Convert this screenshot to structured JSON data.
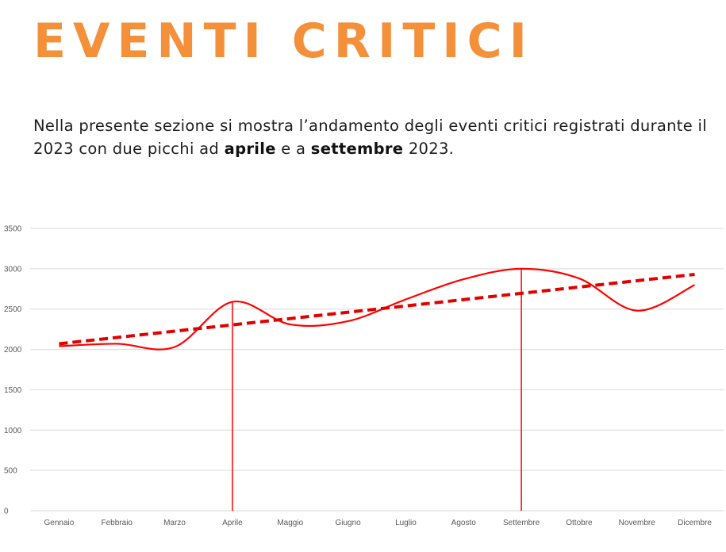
{
  "title": "EVENTI CRITICI",
  "description": {
    "part1": "Nella presente sezione si mostra l’andamento degli eventi critici registrati durante il 2023 con due picchi ad ",
    "bold1": "aprile",
    "part2": " e a ",
    "bold2": "settembre",
    "part3": " 2023."
  },
  "colors": {
    "title": "#f4903a",
    "series": "#ff0000",
    "trend": "#e00000",
    "grid": "#d9d9d9"
  },
  "chart_data": {
    "type": "line",
    "categories": [
      "Gennaio",
      "Febbraio",
      "Marzo",
      "Aprile",
      "Maggio",
      "Giugno",
      "Luglio",
      "Agosto",
      "Settembre",
      "Ottobre",
      "Novembre",
      "Dicembre"
    ],
    "series": [
      {
        "values": [
          2040,
          2070,
          2030,
          2590,
          2310,
          2350,
          2620,
          2870,
          3000,
          2880,
          2480,
          2800
        ],
        "style": "smooth-solid"
      },
      {
        "values": [
          2070,
          2150,
          2230,
          2310,
          2390,
          2460,
          2540,
          2620,
          2700,
          2780,
          2860,
          2930
        ],
        "style": "dashed-trendline"
      }
    ],
    "highlighted_categories": [
      "Aprile",
      "Settembre"
    ],
    "ylim": [
      0,
      3500
    ],
    "yticks": [
      0,
      500,
      1000,
      1500,
      2000,
      2500,
      3000,
      3500
    ],
    "grid": true,
    "legend": "none"
  }
}
